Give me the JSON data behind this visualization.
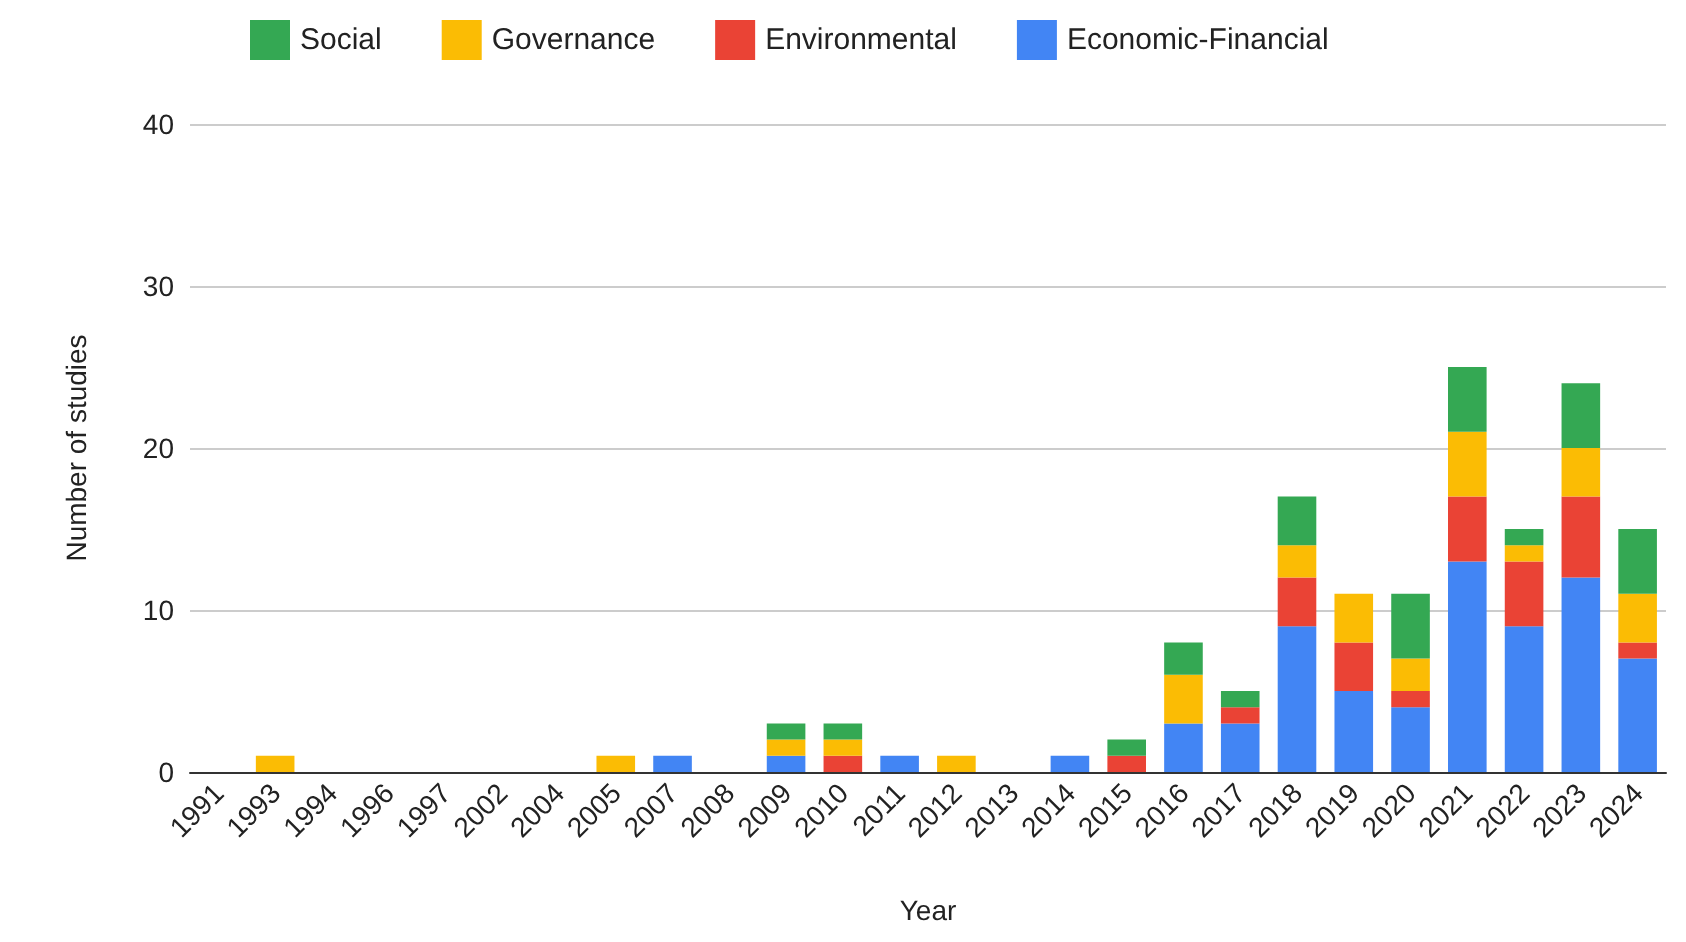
{
  "chart_data": {
    "type": "bar",
    "stacked": true,
    "xlabel": "Year",
    "ylabel": "Number of studies",
    "categories": [
      "1991",
      "1993",
      "1994",
      "1996",
      "1997",
      "2002",
      "2004",
      "2005",
      "2007",
      "2008",
      "2009",
      "2010",
      "2011",
      "2012",
      "2013",
      "2014",
      "2015",
      "2016",
      "2017",
      "2018",
      "2019",
      "2020",
      "2021",
      "2022",
      "2023",
      "2024"
    ],
    "series": [
      {
        "name": "Economic-Financial",
        "color": "#4285f4",
        "values": [
          0,
          0,
          0,
          0,
          0,
          0,
          0,
          0,
          1,
          0,
          1,
          0,
          1,
          0,
          0,
          1,
          0,
          3,
          3,
          9,
          5,
          4,
          13,
          9,
          12,
          7
        ]
      },
      {
        "name": "Environmental",
        "color": "#ea4335",
        "values": [
          0,
          0,
          0,
          0,
          0,
          0,
          0,
          0,
          0,
          0,
          0,
          1,
          0,
          0,
          0,
          0,
          1,
          0,
          1,
          3,
          3,
          1,
          4,
          4,
          5,
          1
        ]
      },
      {
        "name": "Governance",
        "color": "#fbbc04",
        "values": [
          0,
          1,
          0,
          0,
          0,
          0,
          0,
          1,
          0,
          0,
          1,
          1,
          0,
          1,
          0,
          0,
          0,
          3,
          0,
          2,
          3,
          2,
          4,
          1,
          3,
          3
        ]
      },
      {
        "name": "Social",
        "color": "#34a853",
        "values": [
          0,
          0,
          0,
          0,
          0,
          0,
          0,
          0,
          0,
          0,
          1,
          1,
          0,
          0,
          0,
          0,
          1,
          2,
          1,
          3,
          0,
          4,
          4,
          1,
          4,
          4
        ]
      }
    ],
    "ylim": [
      0,
      40
    ],
    "yticks": [
      0,
      10,
      20,
      30,
      40
    ],
    "grid": "y",
    "legend": "top left"
  }
}
